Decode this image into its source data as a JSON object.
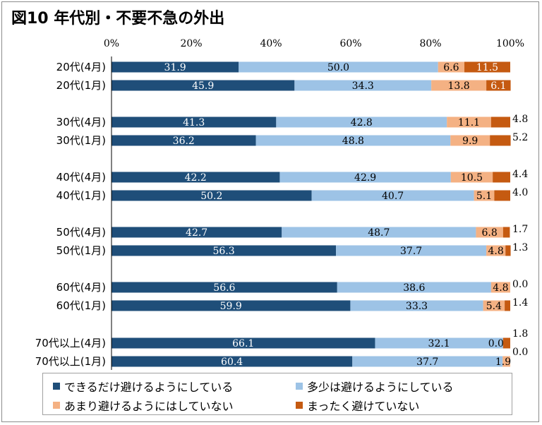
{
  "chart_data": {
    "type": "bar",
    "stacked": true,
    "orientation": "horizontal",
    "title": "図10 年代別・不要不急の外出",
    "xlim": [
      0,
      100
    ],
    "x_ticks": [
      "0%",
      "20%",
      "40%",
      "60%",
      "80%",
      "100%"
    ],
    "categories": [
      "20代(4月)",
      "20代(1月)",
      "30代(4月)",
      "30代(1月)",
      "40代(4月)",
      "40代(1月)",
      "50代(4月)",
      "50代(1月)",
      "60代(4月)",
      "60代(1月)",
      "70代以上(4月)",
      "70代以上(1月)"
    ],
    "series": [
      {
        "name": "できるだけ避けるようにしている",
        "color": "#1f4e79",
        "values": [
          31.9,
          45.9,
          41.3,
          36.2,
          42.2,
          50.2,
          42.7,
          56.3,
          56.6,
          59.9,
          66.1,
          60.4
        ]
      },
      {
        "name": "多少は避けるようにしている",
        "color": "#9dc3e6",
        "values": [
          50.0,
          34.3,
          42.8,
          48.8,
          42.9,
          40.7,
          48.7,
          37.7,
          38.6,
          33.3,
          32.1,
          37.7
        ]
      },
      {
        "name": "あまり避けるようにはしていない",
        "color": "#f4b183",
        "values": [
          6.6,
          13.8,
          11.1,
          9.9,
          10.5,
          5.1,
          6.8,
          4.8,
          4.8,
          5.4,
          0.0,
          1.9
        ]
      },
      {
        "name": "まったく避けていない",
        "color": "#c55a11",
        "values": [
          11.5,
          6.1,
          4.8,
          5.2,
          4.4,
          4.0,
          1.7,
          1.3,
          0.0,
          1.4,
          1.8,
          0.0
        ]
      }
    ],
    "grid": false,
    "legend_position": "bottom"
  }
}
